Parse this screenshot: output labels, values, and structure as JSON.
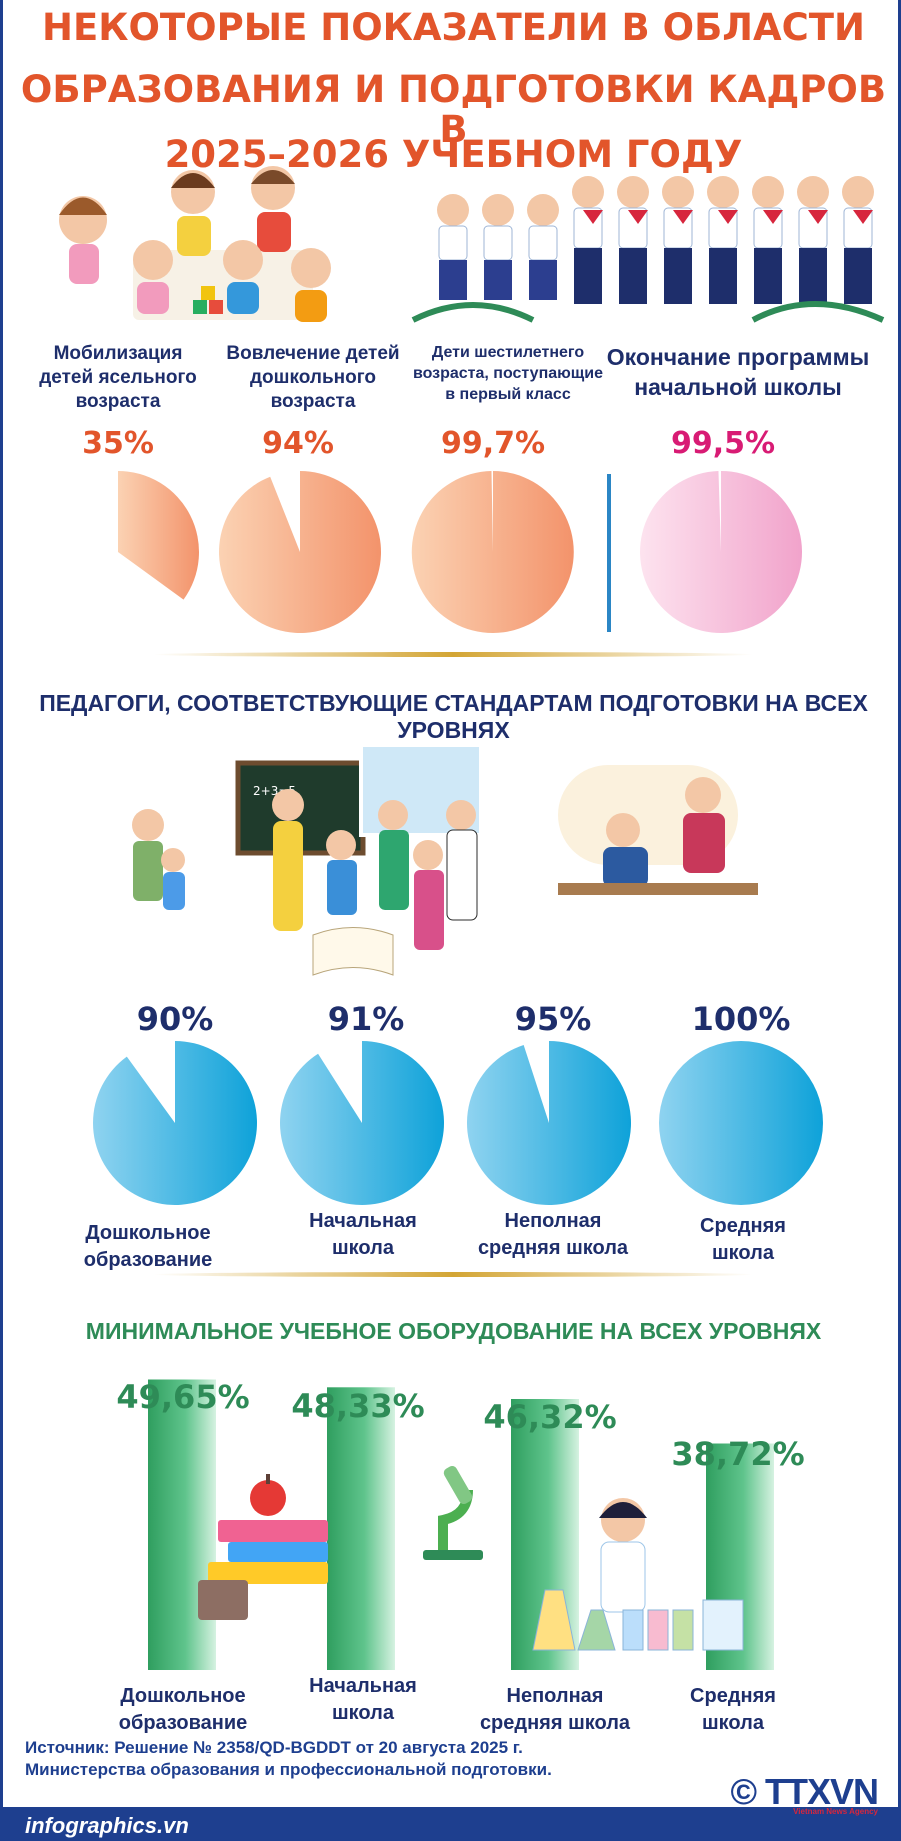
{
  "title_lines": [
    "НЕКОТОРЫЕ ПОКАЗАТЕЛИ В ОБЛАСТИ",
    "ОБРАЗОВАНИЯ И ПОДГОТОВКИ КАДРОВ В",
    "2025–2026 УЧЕБНОМ ГОДУ"
  ],
  "colors": {
    "title": "#e2552b",
    "navy": "#1e3f8f",
    "pie_orange": "#f6a57a",
    "pie_pink": "#f4a7cd",
    "pie_blue": "#2ba7d9",
    "bar_green": "#2e8b57",
    "magenta": "#d81b74",
    "gold": "#d3a534"
  },
  "section1": {
    "captions": [
      "Мобилизация\nдетей ясельного\nвозраста",
      "Вовлечение детей\nдошкольного\nвозраста",
      "Дети шестилетнего\nвозраста, поступающие\nв первый класс",
      "Окончание программы\nначальной школы"
    ],
    "percent_labels": [
      "35%",
      "94%",
      "99,7%",
      "99,5%"
    ]
  },
  "section2": {
    "heading": "ПЕДАГОГИ, СООТВЕТСТВУЮЩИЕ СТАНДАРТАМ ПОДГОТОВКИ НА ВСЕХ УРОВНЯХ",
    "percent_labels": [
      "90%",
      "91%",
      "95%",
      "100%"
    ],
    "captions": [
      "Дошкольное\nобразование",
      "Начальная\nшкола",
      "Неполная\nсредняя школа",
      "Средняя\nшкола"
    ]
  },
  "section3": {
    "heading": "МИНИМАЛЬНОЕ УЧЕБНОЕ ОБОРУДОВАНИЕ НА ВСЕХ УРОВНЯХ",
    "value_labels": [
      "49,65%",
      "48,33%",
      "46,32%",
      "38,72%"
    ],
    "captions": [
      "Дошкольное\nобразование",
      "Начальная\nшкола",
      "Неполная\nсредняя школа",
      "Средняя\nшкола"
    ]
  },
  "source": "Источник: Решение № 2358/QD-BGDDT от 20 августа 2025 г.\n Министерства образования и профессиональной подготовки.",
  "footer": {
    "site": "infographics.vn",
    "logo": "© TTXVN",
    "logo_sub": "Vietnam News Agency"
  },
  "chart_data": [
    {
      "type": "pie",
      "categories": [
        "Мобилизация детей ясельного возраста",
        "Вовлечение детей дошкольного возраста",
        "Дети шестилетнего возраста, поступающие в первый класс",
        "Окончание программы начальной школы"
      ],
      "values": [
        35,
        94,
        99.7,
        99.5
      ]
    },
    {
      "type": "pie",
      "title": "ПЕДАГОГИ, СООТВЕТСТВУЮЩИЕ СТАНДАРТАМ ПОДГОТОВКИ НА ВСЕХ УРОВНЯХ",
      "categories": [
        "Дошкольное образование",
        "Начальная школа",
        "Неполная средняя школа",
        "Средняя школа"
      ],
      "values": [
        90,
        91,
        95,
        100
      ]
    },
    {
      "type": "bar",
      "title": "МИНИМАЛЬНОЕ УЧЕБНОЕ ОБОРУДОВАНИЕ НА ВСЕХ УРОВНЯХ",
      "categories": [
        "Дошкольное образование",
        "Начальная школа",
        "Неполная средняя школа",
        "Средняя школа"
      ],
      "values": [
        49.65,
        48.33,
        46.32,
        38.72
      ]
    }
  ]
}
